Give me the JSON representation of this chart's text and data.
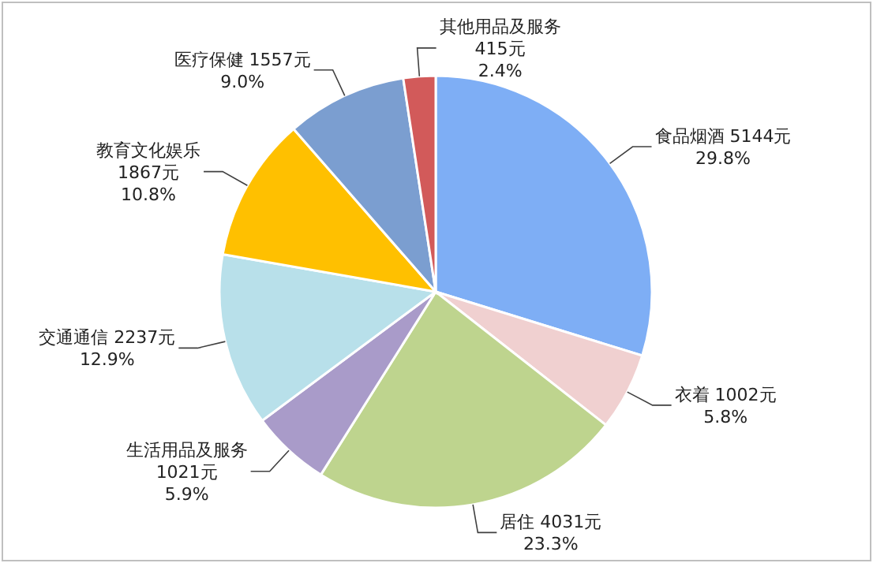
{
  "chart_data": {
    "type": "pie",
    "categories": [
      "食品烟酒",
      "衣着",
      "居住",
      "生活用品及服务",
      "交通通信",
      "教育文化娱乐",
      "医疗保健",
      "其他用品及服务"
    ],
    "values": [
      5144,
      1002,
      4031,
      1021,
      2237,
      1867,
      1557,
      415
    ],
    "value_labels": [
      "5144元\n29.8%",
      "1002元\n5.8%",
      "4031元\n23.3%",
      "1021元\n5.9%",
      "2237元\n12.9%",
      "1867元\n10.8%",
      "1557元\n9.0%",
      "415元\n2.4%"
    ],
    "colors": [
      "#7eaef5",
      "#f0d0d0",
      "#bed48e",
      "#a99bc9",
      "#b8e0ea",
      "#ffc000",
      "#7b9ed0",
      "#d25a5a"
    ]
  }
}
